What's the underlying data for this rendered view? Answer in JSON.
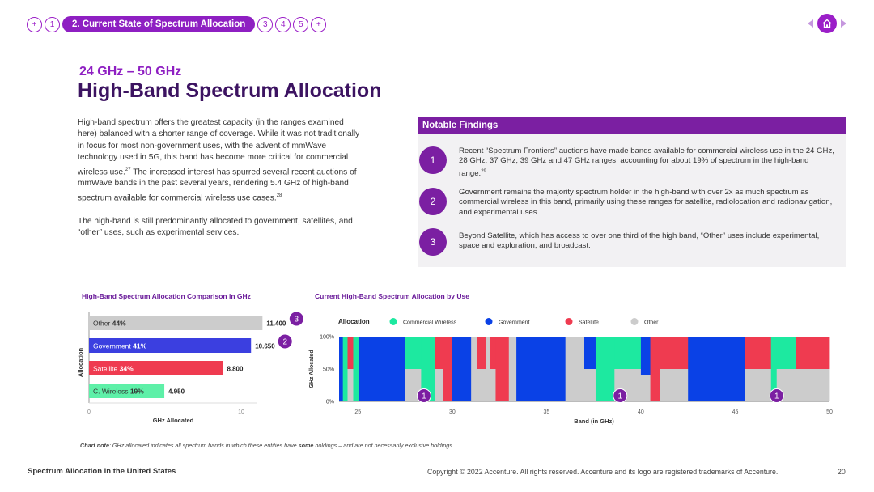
{
  "nav": {
    "items": [
      "+",
      "1"
    ],
    "active": "2. Current State of Spectrum Allocation",
    "items_after": [
      "3",
      "4",
      "5",
      "+"
    ]
  },
  "header": {
    "subtitle": "24 GHz – 50 GHz",
    "title": "High-Band Spectrum Allocation"
  },
  "body": {
    "p1": "High-band spectrum offers the greatest capacity (in the ranges examined here) balanced with a shorter range of coverage. While it was not traditionally in focus for most non-government uses, with the advent of mmWave technology used in 5G, this band has become more critical for commercial wireless use.",
    "p1_ref": "27",
    "p1b": " The increased interest has spurred several recent auctions of mmWave bands in the past several years, rendering 5.4 GHz of high-band spectrum available for commercial wireless use cases.",
    "p1b_ref": "28",
    "p2": "The high-band is still predominantly allocated to government, satellites, and “other” uses, such as experimental services."
  },
  "findings": {
    "heading": "Notable Findings",
    "items": [
      {
        "num": "1",
        "text": "Recent “Spectrum Frontiers” auctions have made bands available for commercial wireless use in the 24 GHz, 28 GHz, 37 GHz, 39 GHz and 47 GHz ranges, accounting for about 19% of spectrum in the high-band range.",
        "ref": "29"
      },
      {
        "num": "2",
        "text": "Government remains the majority spectrum holder in the high-band with over 2x as much spectrum as commercial wireless in this band, primarily using these ranges for satellite, radiolocation and radionavigation, and experimental uses.",
        "ref": ""
      },
      {
        "num": "3",
        "text": "Beyond Satellite, which has access to over one third of the high band, “Other” uses include experimental, space and exploration, and broadcast.",
        "ref": ""
      }
    ]
  },
  "chart_titles": {
    "left": "High-Band Spectrum Allocation Comparison in GHz",
    "right": "Current High-Band Spectrum Allocation by Use"
  },
  "colors": {
    "commercial": "#1de9a0",
    "government": "#0a41e6",
    "satellite": "#ef3b50",
    "other": "#cccccc",
    "purple": "#7b1fa2"
  },
  "chart_data": [
    {
      "type": "bar",
      "orientation": "horizontal",
      "title": "High-Band Spectrum Allocation Comparison in GHz",
      "categories": [
        "Other",
        "Government",
        "Satellite",
        "C. Wireless"
      ],
      "percents": [
        "44%",
        "41%",
        "34%",
        "19%"
      ],
      "values": [
        11.4,
        10.65,
        8.8,
        4.95
      ],
      "value_labels": [
        "11.400",
        "10.650",
        "8.800",
        "4.950"
      ],
      "colors": [
        "#cccccc",
        "#3b3fe0",
        "#ef3b50",
        "#5ef0a8"
      ],
      "callouts": [
        "3",
        "2",
        "",
        ""
      ],
      "xlabel": "GHz Allocated",
      "ylabel": "Allocation",
      "xlim": [
        0,
        12
      ],
      "xticks": [
        0,
        10
      ]
    },
    {
      "type": "bar",
      "subtype": "stacked-100-percent-spectrum",
      "title": "Current High-Band Spectrum Allocation by Use",
      "legend_title": "Allocation",
      "legend": [
        "Commercial Wireless",
        "Government",
        "Satellite",
        "Other"
      ],
      "xlabel": "Band (in GHz)",
      "ylabel": "GHz Allocated",
      "xlim": [
        24,
        50
      ],
      "xticks": [
        25,
        30,
        35,
        40,
        45,
        50
      ],
      "yticks": [
        "0%",
        "50%",
        "100%"
      ],
      "callouts": [
        {
          "label": "1",
          "x": 28.5
        },
        {
          "label": "1",
          "x": 38.9
        },
        {
          "label": "1",
          "x": 47.2
        }
      ],
      "segments": [
        {
          "x0": 24.0,
          "x1": 24.2,
          "stack": [
            [
              "government",
              100
            ]
          ]
        },
        {
          "x0": 24.2,
          "x1": 24.45,
          "stack": [
            [
              "commercial",
              100
            ]
          ]
        },
        {
          "x0": 24.45,
          "x1": 24.75,
          "stack": [
            [
              "satellite",
              50
            ],
            [
              "other",
              50
            ]
          ]
        },
        {
          "x0": 24.75,
          "x1": 25.05,
          "stack": [
            [
              "commercial",
              100
            ]
          ]
        },
        {
          "x0": 25.05,
          "x1": 25.25,
          "stack": [
            [
              "government",
              100
            ]
          ]
        },
        {
          "x0": 25.25,
          "x1": 27.5,
          "stack": [
            [
              "government",
              100
            ]
          ]
        },
        {
          "x0": 27.5,
          "x1": 28.35,
          "stack": [
            [
              "commercial",
              50
            ],
            [
              "other",
              50
            ]
          ]
        },
        {
          "x0": 28.35,
          "x1": 29.1,
          "stack": [
            [
              "commercial",
              100
            ]
          ]
        },
        {
          "x0": 29.1,
          "x1": 29.5,
          "stack": [
            [
              "satellite",
              50
            ],
            [
              "other",
              50
            ]
          ]
        },
        {
          "x0": 29.5,
          "x1": 30.0,
          "stack": [
            [
              "satellite",
              100
            ]
          ]
        },
        {
          "x0": 30.0,
          "x1": 31.0,
          "stack": [
            [
              "government",
              100
            ]
          ]
        },
        {
          "x0": 31.0,
          "x1": 31.3,
          "stack": [
            [
              "other",
              100
            ]
          ]
        },
        {
          "x0": 31.3,
          "x1": 31.8,
          "stack": [
            [
              "satellite",
              50
            ],
            [
              "other",
              50
            ]
          ]
        },
        {
          "x0": 31.8,
          "x1": 32.0,
          "stack": [
            [
              "other",
              100
            ]
          ]
        },
        {
          "x0": 32.0,
          "x1": 32.3,
          "stack": [
            [
              "satellite",
              50
            ],
            [
              "other",
              50
            ]
          ]
        },
        {
          "x0": 32.3,
          "x1": 33.0,
          "stack": [
            [
              "satellite",
              100
            ]
          ]
        },
        {
          "x0": 33.0,
          "x1": 33.4,
          "stack": [
            [
              "other",
              100
            ]
          ]
        },
        {
          "x0": 33.4,
          "x1": 36.0,
          "stack": [
            [
              "government",
              100
            ]
          ]
        },
        {
          "x0": 36.0,
          "x1": 37.0,
          "stack": [
            [
              "other",
              100
            ]
          ]
        },
        {
          "x0": 37.0,
          "x1": 37.6,
          "stack": [
            [
              "government",
              50
            ],
            [
              "other",
              50
            ]
          ]
        },
        {
          "x0": 37.6,
          "x1": 38.6,
          "stack": [
            [
              "commercial",
              100
            ]
          ]
        },
        {
          "x0": 38.6,
          "x1": 40.0,
          "stack": [
            [
              "commercial",
              50
            ],
            [
              "other",
              50
            ]
          ]
        },
        {
          "x0": 40.0,
          "x1": 40.5,
          "stack": [
            [
              "government",
              60
            ],
            [
              "other",
              40
            ]
          ]
        },
        {
          "x0": 40.5,
          "x1": 41.0,
          "stack": [
            [
              "satellite",
              100
            ]
          ]
        },
        {
          "x0": 41.0,
          "x1": 42.5,
          "stack": [
            [
              "satellite",
              50
            ],
            [
              "other",
              50
            ]
          ]
        },
        {
          "x0": 42.5,
          "x1": 45.5,
          "stack": [
            [
              "government",
              100
            ]
          ]
        },
        {
          "x0": 45.5,
          "x1": 46.9,
          "stack": [
            [
              "satellite",
              50
            ],
            [
              "other",
              50
            ]
          ]
        },
        {
          "x0": 46.9,
          "x1": 47.2,
          "stack": [
            [
              "commercial",
              100
            ]
          ]
        },
        {
          "x0": 47.2,
          "x1": 48.2,
          "stack": [
            [
              "commercial",
              50
            ],
            [
              "other",
              50
            ]
          ]
        },
        {
          "x0": 48.2,
          "x1": 50.0,
          "stack": [
            [
              "satellite",
              50
            ],
            [
              "other",
              50
            ]
          ]
        }
      ]
    }
  ],
  "chart_note": {
    "label": "Chart note",
    "text_before": ": GHz allocated indicates all spectrum bands in which these entities have ",
    "bold": "some",
    "text_after": " holdings – and are not necessarily exclusive holdings."
  },
  "footer": {
    "left": "Spectrum Allocation in the United States",
    "copyright": "Copyright © 2022 Accenture. All rights reserved. Accenture and its logo are registered trademarks of Accenture.",
    "page": "20"
  }
}
